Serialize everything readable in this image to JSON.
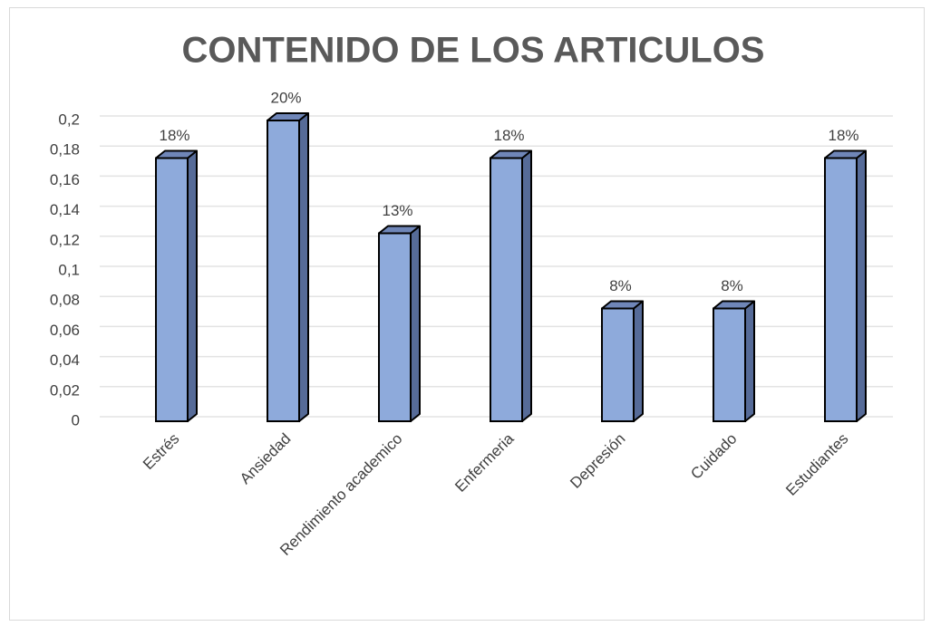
{
  "chart_data": {
    "type": "bar3d",
    "title": "CONTENIDO DE LOS ARTICULOS",
    "categories": [
      "Estrés",
      "Ansiedad",
      "Rendimiento academico",
      "Enfermeria",
      "Depresión",
      "Cuidado",
      "Estudiantes"
    ],
    "values": [
      0.175,
      0.2,
      0.125,
      0.175,
      0.075,
      0.075,
      0.175
    ],
    "value_labels": [
      "18%",
      "20%",
      "13%",
      "18%",
      "8%",
      "8%",
      "18%"
    ],
    "color": "#8eaadb",
    "ylim": [
      0,
      0.2
    ],
    "yticks": [
      0,
      {
        "value": 0.02,
        "label": "0,02"
      },
      {
        "value": 0.04,
        "label": "0,04"
      },
      {
        "value": 0.06,
        "label": "0,06"
      },
      {
        "value": 0.08,
        "label": "0,08"
      },
      {
        "value": 0.1,
        "label": "0,1"
      },
      {
        "value": 0.12,
        "label": "0,12"
      },
      {
        "value": 0.14,
        "label": "0,14"
      },
      {
        "value": 0.16,
        "label": "0,16"
      },
      {
        "value": 0.18,
        "label": "0,18"
      },
      {
        "value": 0.2,
        "label": "0,2"
      }
    ],
    "grid": true
  }
}
